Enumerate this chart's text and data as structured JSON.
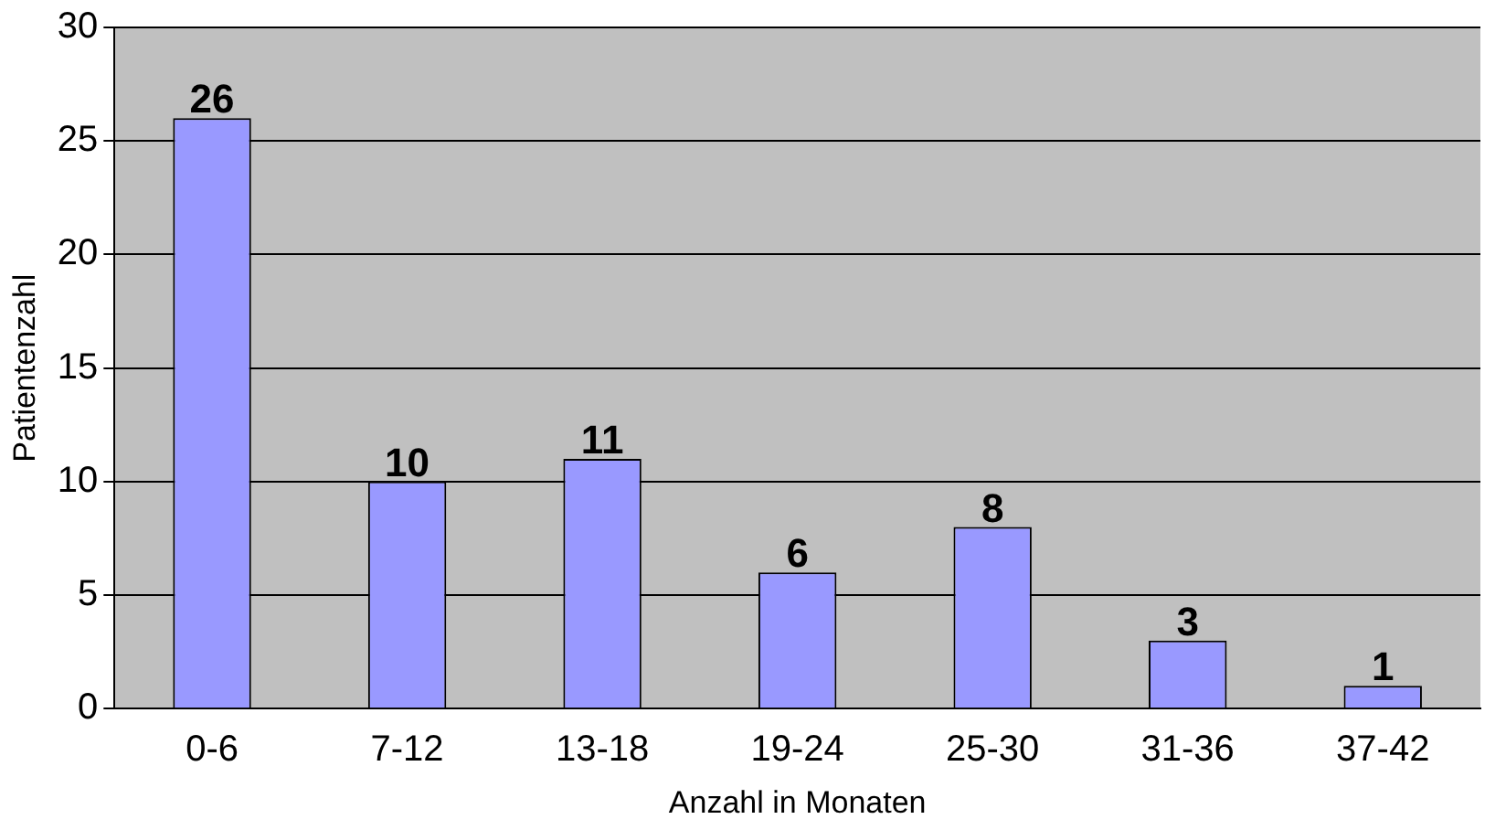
{
  "chart_data": {
    "type": "bar",
    "xlabel": "Anzahl in Monaten",
    "ylabel": "Patientenzahl",
    "categories": [
      "0-6",
      "7-12",
      "13-18",
      "19-24",
      "25-30",
      "31-36",
      "37-42"
    ],
    "values": [
      26,
      10,
      11,
      6,
      8,
      3,
      1
    ],
    "color": "#9999ff",
    "ylim": [
      0,
      30
    ],
    "yticks": [
      0,
      5,
      10,
      15,
      20,
      25,
      30
    ],
    "grid": "y",
    "data_labels": true,
    "legend": false
  }
}
